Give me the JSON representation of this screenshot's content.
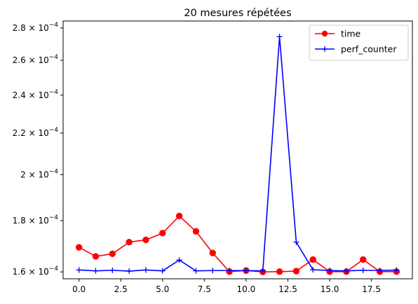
{
  "chart_data": {
    "type": "line",
    "title": "20 mesures répétées",
    "xlabel": "",
    "ylabel": "",
    "yscale": "log",
    "xlim": [
      -0.95,
      19.95
    ],
    "ylim": [
      0.0001575,
      0.0002845
    ],
    "grid": false,
    "legend_position": "top-right",
    "x": [
      0,
      1,
      2,
      3,
      4,
      5,
      6,
      7,
      8,
      9,
      10,
      11,
      12,
      13,
      14,
      15,
      16,
      17,
      18,
      19
    ],
    "xticks": [
      0.0,
      2.5,
      5.0,
      7.5,
      10.0,
      12.5,
      15.0,
      17.5
    ],
    "xtick_labels": [
      "0.0",
      "2.5",
      "5.0",
      "7.5",
      "10.0",
      "12.5",
      "15.0",
      "17.5"
    ],
    "yticks": [
      0.00016,
      0.00018,
      0.0002,
      0.00022,
      0.00024,
      0.00026,
      0.00028
    ],
    "ytick_labels": [
      {
        "mantissa": "1.6",
        "base": "10",
        "exp": "−4"
      },
      {
        "mantissa": "1.8",
        "base": "10",
        "exp": "−4"
      },
      {
        "mantissa": "2",
        "base": "10",
        "exp": "−4"
      },
      {
        "mantissa": "2.2",
        "base": "10",
        "exp": "−4"
      },
      {
        "mantissa": "2.4",
        "base": "10",
        "exp": "−4"
      },
      {
        "mantissa": "2.6",
        "base": "10",
        "exp": "−4"
      },
      {
        "mantissa": "2.8",
        "base": "10",
        "exp": "−4"
      }
    ],
    "series": [
      {
        "name": "time",
        "color": "#ff0000",
        "marker": "circle",
        "values": [
          0.0001693,
          0.0001658,
          0.0001668,
          0.0001713,
          0.0001722,
          0.0001749,
          0.0001819,
          0.0001756,
          0.0001671,
          0.0001601,
          0.0001605,
          0.00016,
          0.0001601,
          0.0001603,
          0.0001646,
          0.0001601,
          0.0001601,
          0.0001646,
          0.0001601,
          0.0001601
        ]
      },
      {
        "name": "perf_counter",
        "color": "#0000ff",
        "marker": "plus",
        "values": [
          0.0001607,
          0.0001604,
          0.0001606,
          0.0001603,
          0.0001607,
          0.0001604,
          0.0001644,
          0.0001604,
          0.0001605,
          0.0001605,
          0.0001605,
          0.0001604,
          0.0002745,
          0.0001713,
          0.0001608,
          0.0001605,
          0.0001604,
          0.0001606,
          0.0001605,
          0.0001607
        ]
      }
    ]
  }
}
